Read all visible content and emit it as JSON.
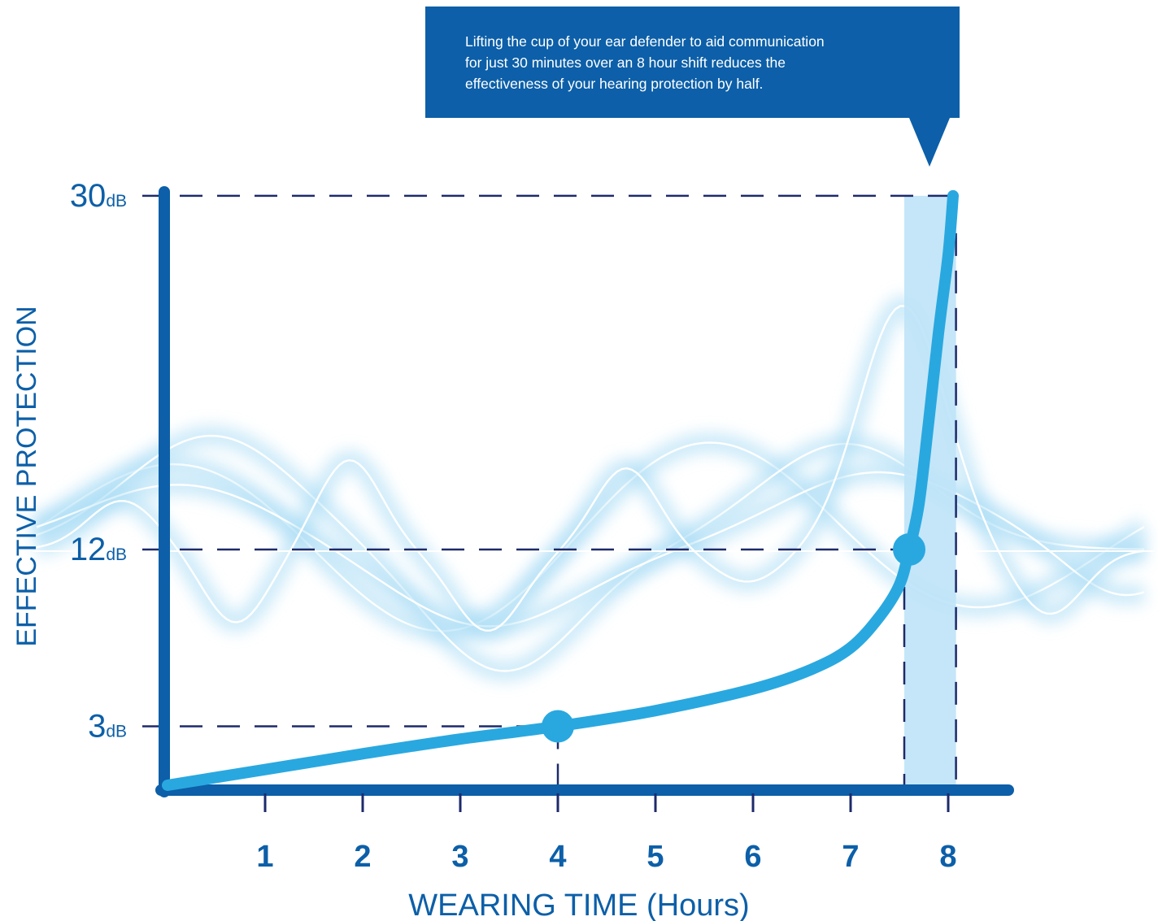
{
  "callout": {
    "lines": [
      "Lifting the cup of your ear defender to aid communication",
      "for just 30 minutes over an 8 hour shift reduces the",
      "effectiveness of your hearing protection by half."
    ],
    "color": "#0c5fa8"
  },
  "colors": {
    "axis": "#0c5fa8",
    "curve": "#29a8e0",
    "guide": "#1d2a6b",
    "band": "#bfe3f7",
    "glow": "#a8dcf5"
  },
  "chart_data": {
    "type": "line",
    "xlabel": "WEARING TIME (Hours)",
    "ylabel": "EFFECTIVE PROTECTION",
    "x_ticks": [
      "1",
      "2",
      "3",
      "4",
      "5",
      "6",
      "7",
      "8"
    ],
    "y_ticks": [
      {
        "value": 30,
        "num": "30",
        "unit": "dB"
      },
      {
        "value": 12,
        "num": "12",
        "unit": "dB"
      },
      {
        "value": 3,
        "num": "3",
        "unit": "dB"
      }
    ],
    "xlim": [
      0,
      8.7
    ],
    "ylim": [
      0,
      30
    ],
    "series": [
      {
        "values": [
          [
            0,
            0
          ],
          [
            1,
            0.8
          ],
          [
            2,
            1.6
          ],
          [
            3,
            2.35
          ],
          [
            4,
            3
          ],
          [
            5,
            3.8
          ],
          [
            6,
            4.9
          ],
          [
            6.6,
            5.9
          ],
          [
            7,
            7
          ],
          [
            7.3,
            8.6
          ],
          [
            7.5,
            10.2
          ],
          [
            7.6,
            12
          ],
          [
            7.7,
            14.3
          ],
          [
            7.8,
            18.5
          ],
          [
            7.9,
            23
          ],
          [
            8,
            27
          ],
          [
            8.05,
            30
          ]
        ]
      }
    ],
    "highlighted_points": [
      {
        "x": 4,
        "y": 3
      },
      {
        "x": 7.6,
        "y": 12
      }
    ],
    "highlight_band": {
      "x_start": 7.55,
      "x_end": 8.08
    },
    "decoration": "sound-wave-glow"
  }
}
